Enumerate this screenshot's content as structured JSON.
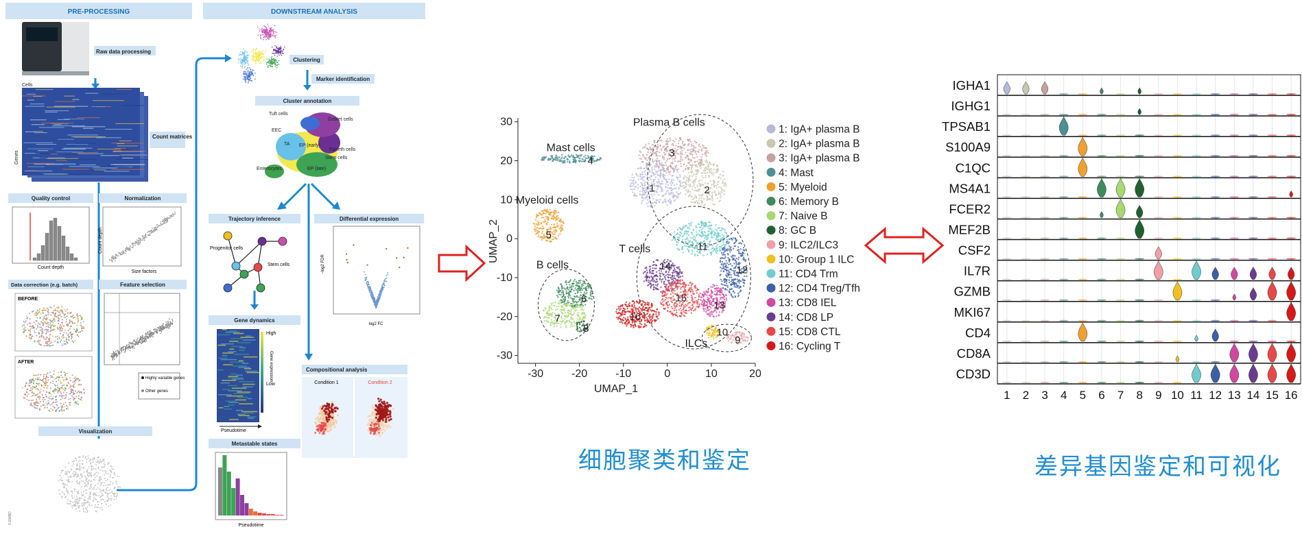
{
  "preprocessing": {
    "header": "PRE-PROCESSING",
    "steps": [
      "Raw data processing",
      "Count matrices",
      "Quality control",
      "Normalization",
      "Data correction (e.g. batch)",
      "Feature selection",
      "Visualization"
    ],
    "axis_labels": {
      "cells": "Cells",
      "genes": "Genes",
      "count_depth": "Count depth",
      "count_depth_y": "Count depth",
      "size_factors": "Size factors"
    },
    "before": "BEFORE",
    "after": "AFTER",
    "legend_highly": "Highly variable genes",
    "legend_other": "Other genes",
    "credit": "© EMBO"
  },
  "downstream": {
    "header": "DOWNSTREAM ANALYSIS",
    "steps": [
      "Clustering",
      "Marker identification",
      "Cluster annotation",
      "Trajectory inference",
      "Differential expression",
      "Gene dynamics",
      "Metastable states",
      "Compositional analysis"
    ],
    "cell_types": [
      "Tuft cells",
      "Goblet cells",
      "EEC",
      "TA",
      "EP (early)",
      "Paneth cells",
      "Stem cells",
      "Enterocytes",
      "EP (late)"
    ],
    "trajectory_labels": [
      "Progenitor cells",
      "Stem cells"
    ],
    "gene_dyn": {
      "high": "High",
      "low": "Low",
      "axis": "Gene expression",
      "x": "Pseudotime"
    },
    "metastable_x": "Pseudotime",
    "de_axes": {
      "x": "log2 FC",
      "y": "−log2 FDR"
    },
    "conditions": [
      "Condition 1",
      "Condition 2"
    ]
  },
  "umap": {
    "xlabel": "UMAP_1",
    "ylabel": "UMAP_2",
    "x_ticks": [
      -30,
      -20,
      -10,
      0,
      10,
      20
    ],
    "y_ticks": [
      30,
      20,
      10,
      0,
      -10,
      -20,
      -30
    ],
    "xlim": [
      -34,
      20
    ],
    "ylim": [
      -32,
      31
    ],
    "group_labels": [
      "Mast cells",
      "Plasma B cells",
      "Myeloid cells",
      "T cells",
      "B cells",
      "ILCs"
    ],
    "legend": [
      {
        "num": "1",
        "label": "1: IgA+ plasma B",
        "color": "#b7b9dc"
      },
      {
        "num": "2",
        "label": "2: IgA+ plasma B",
        "color": "#c8c8b0"
      },
      {
        "num": "3",
        "label": "3: IgA+ plasma B",
        "color": "#c9a0a0"
      },
      {
        "num": "4",
        "label": "4: Mast",
        "color": "#4f8f95"
      },
      {
        "num": "5",
        "label": "5: Myeloid",
        "color": "#f0a030"
      },
      {
        "num": "6",
        "label": "6: Memory B",
        "color": "#3e8c5c"
      },
      {
        "num": "7",
        "label": "7: Naive B",
        "color": "#a8d870"
      },
      {
        "num": "8",
        "label": "8: GC B",
        "color": "#1f6030"
      },
      {
        "num": "9",
        "label": "9: ILC2/ILC3",
        "color": "#f0a0a8"
      },
      {
        "num": "10",
        "label": "10: Group 1 ILC",
        "color": "#f0c020"
      },
      {
        "num": "11",
        "label": "11: CD4 Trm",
        "color": "#70cccc"
      },
      {
        "num": "12",
        "label": "12: CD4 Treg/Tfh",
        "color": "#3c5fa8"
      },
      {
        "num": "13",
        "label": "13: CD8 IEL",
        "color": "#d048a0"
      },
      {
        "num": "14",
        "label": "14: CD8 LP",
        "color": "#6a3c90"
      },
      {
        "num": "15",
        "label": "15: CD8 CTL",
        "color": "#e84848"
      },
      {
        "num": "16",
        "label": "16: Cycling T",
        "color": "#d81818"
      }
    ]
  },
  "violin": {
    "genes": [
      "IGHA1",
      "IGHG1",
      "TPSAB1",
      "S100A9",
      "C1QC",
      "MS4A1",
      "FCER2",
      "MEF2B",
      "CSF2",
      "IL7R",
      "GZMB",
      "MKI67",
      "CD4",
      "CD8A",
      "CD3D"
    ],
    "clusters": [
      "1",
      "2",
      "3",
      "4",
      "5",
      "6",
      "7",
      "8",
      "9",
      "10",
      "11",
      "12",
      "13",
      "14",
      "15",
      "16"
    ],
    "expression": [
      [
        2,
        2,
        2,
        0,
        0,
        1,
        0,
        1,
        0,
        0,
        0,
        0,
        0,
        0,
        0,
        0
      ],
      [
        0,
        0,
        0,
        0,
        0,
        0,
        0,
        1,
        0,
        0,
        0,
        0,
        0,
        0,
        0,
        0
      ],
      [
        0,
        0,
        0,
        3,
        0,
        0,
        0,
        0,
        0,
        0,
        0,
        0,
        0,
        0,
        0,
        0
      ],
      [
        0,
        0,
        0,
        0,
        3,
        0,
        0,
        0,
        0,
        0,
        0,
        0,
        0,
        0,
        0,
        0
      ],
      [
        0,
        0,
        0,
        0,
        3,
        0,
        0,
        0,
        0,
        0,
        0,
        0,
        0,
        0,
        0,
        0
      ],
      [
        0,
        0,
        0,
        0,
        0,
        3,
        3,
        3,
        0,
        0,
        0,
        0,
        0,
        0,
        0,
        1
      ],
      [
        0,
        0,
        0,
        0,
        0,
        1,
        3,
        2,
        0,
        0,
        0,
        0,
        0,
        0,
        0,
        0
      ],
      [
        0,
        0,
        0,
        0,
        0,
        0,
        0,
        3,
        0,
        0,
        0,
        0,
        0,
        0,
        0,
        0
      ],
      [
        0,
        0,
        0,
        0,
        0,
        0,
        0,
        0,
        2,
        0,
        0,
        0,
        0,
        0,
        0,
        0
      ],
      [
        0,
        0,
        0,
        0,
        0,
        0,
        0,
        0,
        3,
        0,
        3,
        2,
        2,
        2,
        2,
        2
      ],
      [
        0,
        0,
        0,
        0,
        0,
        0,
        0,
        0,
        0,
        3,
        0,
        0,
        1,
        2,
        3,
        3
      ],
      [
        0,
        0,
        0,
        0,
        0,
        0,
        0,
        0,
        0,
        0,
        0,
        0,
        0,
        0,
        0,
        3
      ],
      [
        0,
        0,
        0,
        0,
        3,
        0,
        0,
        0,
        0,
        0,
        1,
        2,
        0,
        0,
        0,
        0
      ],
      [
        0,
        0,
        0,
        0,
        0,
        0,
        0,
        0,
        0,
        1,
        0,
        0,
        3,
        3,
        3,
        3
      ],
      [
        0,
        0,
        0,
        0,
        0,
        0,
        0,
        0,
        0,
        0,
        3,
        3,
        3,
        3,
        3,
        3
      ]
    ]
  },
  "captions": {
    "clustering": "细胞聚类和鉴定",
    "de": "差异基因鉴定和可视化"
  }
}
